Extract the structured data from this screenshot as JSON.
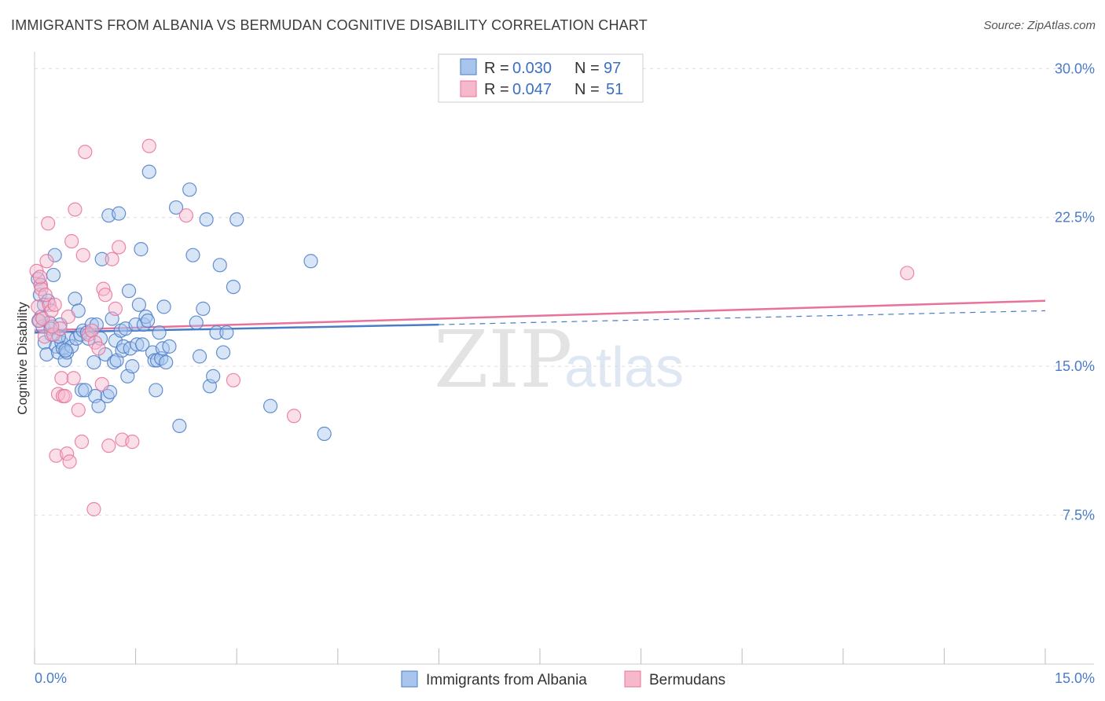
{
  "header": {
    "title": "IMMIGRANTS FROM ALBANIA VS BERMUDAN COGNITIVE DISABILITY CORRELATION CHART",
    "source": "Source: ZipAtlas.com"
  },
  "watermark": {
    "zip": "ZIP",
    "atlas": "atlas"
  },
  "colors": {
    "blue": "#4a7cc7",
    "blue_fill": "#a9c5ee",
    "pink": "#e8729b",
    "pink_fill": "#f6b8cb",
    "grid": "#dddddd",
    "tick_label": "#4a7cc7"
  },
  "legend": {
    "rows": [
      {
        "r_label": "R = ",
        "r_value": "0.030",
        "n_label": "N = ",
        "n_value": "97"
      },
      {
        "r_label": "R = ",
        "r_value": "0.047",
        "n_label": "N = ",
        "n_value": "51"
      }
    ]
  },
  "chart_data": {
    "type": "scatter",
    "title": "IMMIGRANTS FROM ALBANIA VS BERMUDAN COGNITIVE DISABILITY CORRELATION CHART",
    "xlabel": "",
    "ylabel": "Cognitive Disability",
    "xlim": [
      0,
      15
    ],
    "ylim": [
      0,
      31
    ],
    "x_tick_labels": [
      "0.0%",
      "15.0%"
    ],
    "y_ticks": [
      7.5,
      15.0,
      22.5,
      30.0
    ],
    "y_tick_labels": [
      "7.5%",
      "15.0%",
      "22.5%",
      "30.0%"
    ],
    "grid": true,
    "legend_position": "top-center",
    "series": [
      {
        "name": "Immigrants from Albania",
        "color": "#4a7cc7",
        "R": 0.03,
        "N": 97,
        "trend": {
          "x": [
            0.0,
            6.0
          ],
          "y": [
            16.7,
            17.1
          ],
          "dashed_extension": {
            "x": [
              6.0,
              15.0
            ],
            "y": [
              17.1,
              17.8
            ]
          }
        },
        "points": [
          [
            0.05,
            19.4
          ],
          [
            0.08,
            18.6
          ],
          [
            0.1,
            17.5
          ],
          [
            0.12,
            17.0
          ],
          [
            0.15,
            16.2
          ],
          [
            0.18,
            15.6
          ],
          [
            0.2,
            18.3
          ],
          [
            0.22,
            17.2
          ],
          [
            0.25,
            16.6
          ],
          [
            0.28,
            19.6
          ],
          [
            0.3,
            20.6
          ],
          [
            0.32,
            16.0
          ],
          [
            0.35,
            15.7
          ],
          [
            0.38,
            17.1
          ],
          [
            0.4,
            16.2
          ],
          [
            0.42,
            15.9
          ],
          [
            0.45,
            15.3
          ],
          [
            0.48,
            15.7
          ],
          [
            0.5,
            16.4
          ],
          [
            0.55,
            16.0
          ],
          [
            0.6,
            18.4
          ],
          [
            0.62,
            16.4
          ],
          [
            0.65,
            17.8
          ],
          [
            0.68,
            16.6
          ],
          [
            0.7,
            13.8
          ],
          [
            0.72,
            16.8
          ],
          [
            0.75,
            13.8
          ],
          [
            0.78,
            16.7
          ],
          [
            0.8,
            16.4
          ],
          [
            0.85,
            17.1
          ],
          [
            0.88,
            15.2
          ],
          [
            0.9,
            13.5
          ],
          [
            0.92,
            17.1
          ],
          [
            0.95,
            13.0
          ],
          [
            0.98,
            16.4
          ],
          [
            1.0,
            20.4
          ],
          [
            1.05,
            15.6
          ],
          [
            1.08,
            13.5
          ],
          [
            1.1,
            22.6
          ],
          [
            1.12,
            13.7
          ],
          [
            1.15,
            17.4
          ],
          [
            1.18,
            15.2
          ],
          [
            1.2,
            16.3
          ],
          [
            1.22,
            15.3
          ],
          [
            1.25,
            22.7
          ],
          [
            1.28,
            16.8
          ],
          [
            1.3,
            15.8
          ],
          [
            1.32,
            16.0
          ],
          [
            1.35,
            16.9
          ],
          [
            1.38,
            14.5
          ],
          [
            1.4,
            18.8
          ],
          [
            1.42,
            15.9
          ],
          [
            1.45,
            15.0
          ],
          [
            1.5,
            17.1
          ],
          [
            1.52,
            16.1
          ],
          [
            1.55,
            18.1
          ],
          [
            1.58,
            20.9
          ],
          [
            1.6,
            16.1
          ],
          [
            1.62,
            17.1
          ],
          [
            1.65,
            17.5
          ],
          [
            1.68,
            17.3
          ],
          [
            1.7,
            24.8
          ],
          [
            1.75,
            15.7
          ],
          [
            1.78,
            15.3
          ],
          [
            1.8,
            13.8
          ],
          [
            1.82,
            15.3
          ],
          [
            1.85,
            16.7
          ],
          [
            1.88,
            15.4
          ],
          [
            1.9,
            15.9
          ],
          [
            1.92,
            18.0
          ],
          [
            1.95,
            15.2
          ],
          [
            2.0,
            16.0
          ],
          [
            2.1,
            23.0
          ],
          [
            2.15,
            12.0
          ],
          [
            2.3,
            23.9
          ],
          [
            2.35,
            20.6
          ],
          [
            2.4,
            17.2
          ],
          [
            2.45,
            15.5
          ],
          [
            2.5,
            17.9
          ],
          [
            2.55,
            22.4
          ],
          [
            2.6,
            14.0
          ],
          [
            2.65,
            14.5
          ],
          [
            2.7,
            16.7
          ],
          [
            2.75,
            20.1
          ],
          [
            2.8,
            15.7
          ],
          [
            2.85,
            16.7
          ],
          [
            2.95,
            19.0
          ],
          [
            3.0,
            22.4
          ],
          [
            3.5,
            13.0
          ],
          [
            4.1,
            20.3
          ],
          [
            4.3,
            11.6
          ],
          [
            0.06,
            17.3
          ],
          [
            0.09,
            19.1
          ],
          [
            0.14,
            18.1
          ],
          [
            0.24,
            16.9
          ],
          [
            0.36,
            16.5
          ],
          [
            0.46,
            15.8
          ]
        ]
      },
      {
        "name": "Bermudans",
        "color": "#e8729b",
        "R": 0.047,
        "N": 51,
        "trend": {
          "x": [
            0.0,
            15.0
          ],
          "y": [
            16.8,
            18.3
          ]
        },
        "points": [
          [
            0.03,
            19.8
          ],
          [
            0.05,
            18.0
          ],
          [
            0.07,
            17.3
          ],
          [
            0.09,
            19.1
          ],
          [
            0.1,
            18.9
          ],
          [
            0.12,
            17.4
          ],
          [
            0.15,
            16.5
          ],
          [
            0.18,
            20.3
          ],
          [
            0.2,
            22.2
          ],
          [
            0.22,
            18.1
          ],
          [
            0.25,
            17.8
          ],
          [
            0.28,
            16.6
          ],
          [
            0.3,
            18.1
          ],
          [
            0.32,
            10.5
          ],
          [
            0.35,
            13.6
          ],
          [
            0.38,
            16.9
          ],
          [
            0.4,
            14.4
          ],
          [
            0.42,
            13.5
          ],
          [
            0.45,
            13.5
          ],
          [
            0.48,
            10.6
          ],
          [
            0.5,
            17.5
          ],
          [
            0.52,
            10.2
          ],
          [
            0.55,
            21.3
          ],
          [
            0.58,
            14.4
          ],
          [
            0.6,
            22.9
          ],
          [
            0.65,
            12.8
          ],
          [
            0.7,
            11.2
          ],
          [
            0.72,
            20.6
          ],
          [
            0.75,
            25.8
          ],
          [
            0.8,
            16.6
          ],
          [
            0.85,
            16.8
          ],
          [
            0.88,
            7.8
          ],
          [
            0.9,
            16.2
          ],
          [
            0.95,
            15.9
          ],
          [
            1.0,
            14.1
          ],
          [
            1.02,
            18.9
          ],
          [
            1.05,
            18.6
          ],
          [
            1.1,
            11.0
          ],
          [
            1.15,
            20.4
          ],
          [
            1.2,
            17.9
          ],
          [
            1.25,
            21.0
          ],
          [
            1.3,
            11.3
          ],
          [
            1.45,
            11.2
          ],
          [
            1.7,
            26.1
          ],
          [
            2.25,
            22.6
          ],
          [
            2.95,
            14.3
          ],
          [
            3.85,
            12.5
          ],
          [
            12.95,
            19.7
          ],
          [
            0.08,
            19.5
          ],
          [
            0.16,
            18.6
          ],
          [
            0.26,
            17.0
          ]
        ]
      }
    ]
  },
  "bottom_legend": [
    {
      "label": "Immigrants from Albania"
    },
    {
      "label": "Bermudans"
    }
  ]
}
